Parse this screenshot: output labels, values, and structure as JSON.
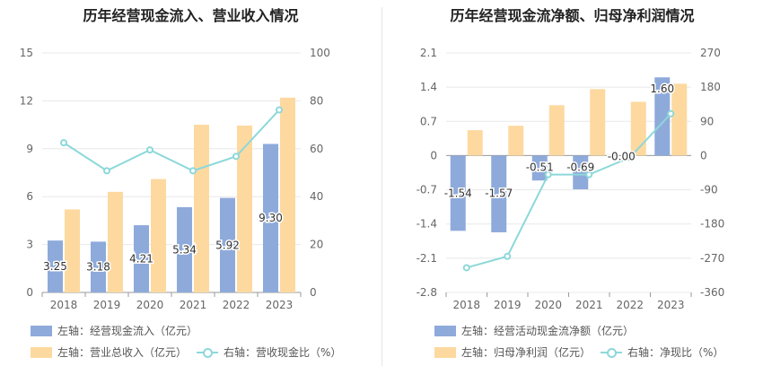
{
  "colors": {
    "blue": "#8eaadb",
    "orange": "#fdd9a0",
    "teal": "#8dd8da",
    "grid": "#e8e8e8",
    "axis_text": "#666666"
  },
  "chart_data": [
    {
      "type": "bar",
      "title": "历年经营现金流入、营业收入情况",
      "categories": [
        "2018",
        "2019",
        "2020",
        "2021",
        "2022",
        "2023"
      ],
      "y_left": {
        "ticks": [
          "0",
          "3",
          "6",
          "9",
          "12",
          "15"
        ],
        "lim": [
          0,
          15
        ]
      },
      "y_right": {
        "ticks": [
          "0",
          "20",
          "40",
          "60",
          "80",
          "100"
        ],
        "lim": [
          0,
          100
        ]
      },
      "grid": true,
      "legend_position": "bottom",
      "series": [
        {
          "name": "左轴：经营现金流入（亿元）",
          "kind": "bar",
          "axis": "left",
          "color": "#8eaadb",
          "values": [
            3.25,
            3.18,
            4.21,
            5.34,
            5.92,
            9.3
          ],
          "labels": [
            "3.25",
            "3.18",
            "4.21",
            "5.34",
            "5.92",
            "9.30"
          ]
        },
        {
          "name": "左轴：营业总收入（亿元）",
          "kind": "bar",
          "axis": "left",
          "color": "#fdd9a0",
          "values": [
            5.2,
            6.3,
            7.1,
            10.5,
            10.45,
            12.2
          ]
        },
        {
          "name": "右轴：营收现金比（%）",
          "kind": "line",
          "axis": "right",
          "color": "#8dd8da",
          "values": [
            62.5,
            50.8,
            59.5,
            50.8,
            56.8,
            76.2
          ]
        }
      ]
    },
    {
      "type": "bar",
      "title": "历年经营现金流净额、归母净利润情况",
      "categories": [
        "2018",
        "2019",
        "2020",
        "2021",
        "2022",
        "2023"
      ],
      "y_left": {
        "ticks": [
          "-2.8",
          "-2.1",
          "-1.4",
          "-0.7",
          "0",
          "0.7",
          "1.4",
          "2.1"
        ],
        "lim": [
          -2.8,
          2.1
        ]
      },
      "y_right": {
        "ticks": [
          "-360",
          "-270",
          "-180",
          "-90",
          "0",
          "90",
          "180",
          "270"
        ],
        "lim": [
          -360,
          270
        ]
      },
      "grid": true,
      "legend_position": "bottom",
      "series": [
        {
          "name": "左轴：经营活动现金流净额（亿元）",
          "kind": "bar",
          "axis": "left",
          "color": "#8eaadb",
          "values": [
            -1.54,
            -1.57,
            -0.51,
            -0.69,
            -0.0,
            1.6
          ],
          "labels": [
            "-1.54",
            "-1.57",
            "-0.51",
            "-0.69",
            "-0.00",
            "1.60"
          ]
        },
        {
          "name": "左轴：归母净利润（亿元）",
          "kind": "bar",
          "axis": "left",
          "color": "#fdd9a0",
          "values": [
            0.52,
            0.61,
            1.03,
            1.36,
            1.1,
            1.47
          ]
        },
        {
          "name": "右轴：净现比（%）",
          "kind": "line",
          "axis": "right",
          "color": "#8dd8da",
          "values": [
            -295,
            -265,
            -50,
            -50,
            -5,
            110
          ]
        }
      ]
    }
  ]
}
